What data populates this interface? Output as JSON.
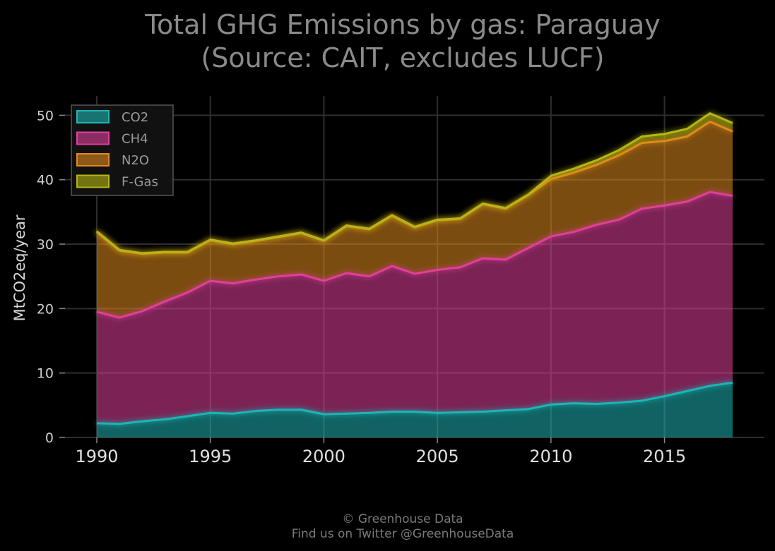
{
  "chart_data": {
    "type": "area",
    "stacked": true,
    "title_line1": "Total GHG Emissions by gas: Paraguay",
    "title_line2": "(Source: CAIT, excludes LUCF)",
    "ylabel": "MtCO2eq/year",
    "xlabel": "",
    "xlim": [
      1988.6,
      2019.4
    ],
    "ylim": [
      0,
      53
    ],
    "xticks": [
      1990,
      1995,
      2000,
      2005,
      2010,
      2015
    ],
    "yticks": [
      0,
      10,
      20,
      30,
      40,
      50
    ],
    "grid": true,
    "legend_position": "top-left",
    "x": [
      1990,
      1991,
      1992,
      1993,
      1994,
      1995,
      1996,
      1997,
      1998,
      1999,
      2000,
      2001,
      2002,
      2003,
      2004,
      2005,
      2006,
      2007,
      2008,
      2009,
      2010,
      2011,
      2012,
      2013,
      2014,
      2015,
      2016,
      2017,
      2018
    ],
    "series": [
      {
        "name": "CO2",
        "color": "#1fb5b5",
        "values": [
          2.2,
          2.1,
          2.5,
          2.8,
          3.3,
          3.8,
          3.7,
          4.1,
          4.3,
          4.3,
          3.6,
          3.7,
          3.8,
          4.0,
          4.0,
          3.8,
          3.9,
          4.0,
          4.2,
          4.4,
          5.1,
          5.3,
          5.2,
          5.4,
          5.7,
          6.4,
          7.2,
          8.0,
          8.5
        ]
      },
      {
        "name": "CH4",
        "color": "#e0409a",
        "values": [
          17.3,
          16.5,
          17.1,
          18.3,
          19.2,
          20.5,
          20.2,
          20.4,
          20.7,
          21.0,
          20.7,
          21.8,
          21.2,
          22.6,
          21.4,
          22.2,
          22.5,
          23.8,
          23.4,
          25.0,
          26.1,
          26.6,
          27.8,
          28.4,
          29.8,
          29.6,
          29.4,
          30.1,
          29.0
        ]
      },
      {
        "name": "N2O",
        "color": "#e08a1e",
        "values": [
          12.4,
          10.4,
          8.9,
          7.6,
          6.2,
          6.3,
          6.1,
          6.0,
          6.1,
          6.4,
          6.2,
          7.3,
          7.3,
          7.8,
          7.2,
          7.7,
          7.5,
          8.4,
          7.9,
          8.2,
          8.9,
          9.2,
          9.3,
          10.0,
          10.2,
          10.0,
          10.1,
          10.9,
          10.0
        ]
      },
      {
        "name": "F-Gas",
        "color": "#b5b514",
        "values": [
          0.1,
          0.1,
          0.1,
          0.1,
          0.1,
          0.1,
          0.1,
          0.1,
          0.1,
          0.1,
          0.1,
          0.1,
          0.1,
          0.1,
          0.1,
          0.1,
          0.1,
          0.1,
          0.1,
          0.1,
          0.5,
          0.6,
          0.7,
          0.8,
          1.0,
          1.1,
          1.2,
          1.3,
          1.3
        ]
      }
    ]
  },
  "footer": {
    "line1": "© Greenhouse Data",
    "line2": "Find us on Twitter @GreenhouseData"
  }
}
